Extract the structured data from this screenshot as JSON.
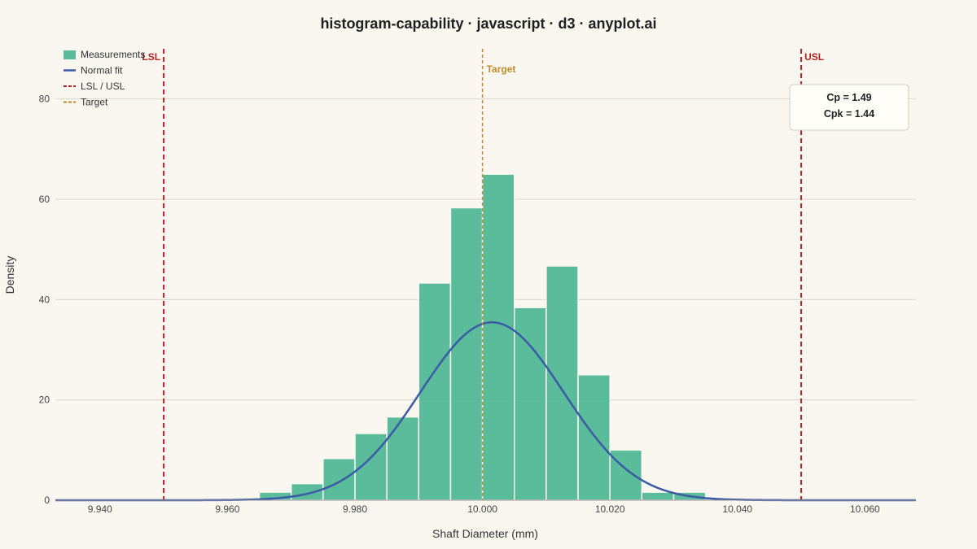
{
  "chart_data": {
    "type": "bar",
    "title": "histogram-capability · javascript · d3 · anyplot.ai",
    "xlabel": "Shaft Diameter (mm)",
    "ylabel": "Density",
    "xlim": [
      9.933,
      10.068
    ],
    "ylim": [
      0,
      90
    ],
    "x_ticks": [
      9.94,
      9.96,
      9.98,
      10.0,
      10.02,
      10.04,
      10.06
    ],
    "x_tick_labels": [
      "9.940",
      "9.960",
      "9.980",
      "10.000",
      "10.020",
      "10.040",
      "10.060"
    ],
    "y_ticks": [
      0,
      20,
      40,
      60,
      80
    ],
    "y_tick_labels": [
      "0",
      "20",
      "40",
      "60",
      "80"
    ],
    "grid": "horizontal",
    "legend_position": "top-left",
    "legend": [
      {
        "label": "Measurements",
        "kind": "rect",
        "color": "#3DB28C"
      },
      {
        "label": "Normal fit",
        "kind": "line",
        "color": "#3B5BA5"
      },
      {
        "label": "LSL / USL",
        "kind": "dash",
        "color": "#B22222"
      },
      {
        "label": "Target",
        "kind": "dash",
        "color": "#C48A2A"
      }
    ],
    "bin_edges": [
      9.965,
      9.97,
      9.975,
      9.98,
      9.985,
      9.99,
      9.995,
      10.0,
      10.005,
      10.01,
      10.015,
      10.02,
      10.025,
      10.03,
      10.035
    ],
    "series": [
      {
        "name": "Measurements",
        "values": [
          1.6,
          3.3,
          8.3,
          13.3,
          16.6,
          43.3,
          58.3,
          65.0,
          38.4,
          46.7,
          25.0,
          10.0,
          1.6,
          1.6
        ]
      },
      {
        "name": "Normal fit",
        "mean": 10.0015,
        "std": 0.01125
      }
    ],
    "spec_lines": [
      {
        "label": "LSL",
        "value": 9.95,
        "color": "#B22222"
      },
      {
        "label": "USL",
        "value": 10.05,
        "color": "#B22222"
      },
      {
        "label": "Target",
        "value": 10.0,
        "color": "#C48A2A"
      }
    ],
    "capability": {
      "cp": "Cp = 1.49",
      "cpk": "Cpk = 1.44"
    }
  }
}
